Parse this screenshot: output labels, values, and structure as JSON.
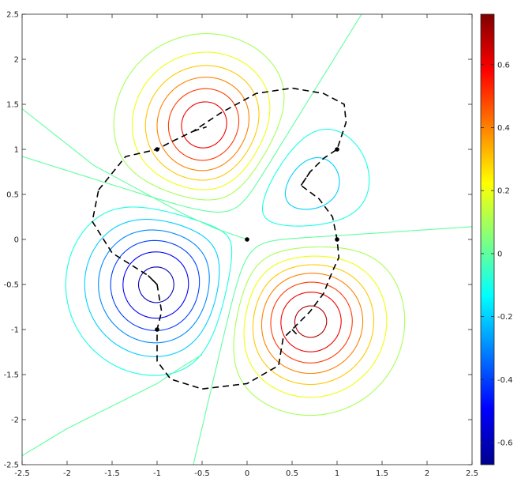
{
  "chart_data": {
    "type": "contour",
    "title": "",
    "xlabel": "",
    "ylabel": "",
    "xlim": [
      -2.5,
      2.5
    ],
    "ylim": [
      -2.5,
      2.5
    ],
    "x_ticks": [
      "-2.5",
      "-2",
      "-1.5",
      "-1",
      "-0.5",
      "0",
      "0.5",
      "1",
      "1.5",
      "2",
      "2.5"
    ],
    "y_ticks": [
      "2.5",
      "2",
      "1.5",
      "1",
      "0.5",
      "0",
      "-0.5",
      "-1",
      "-1.5",
      "-2",
      "-2.5"
    ],
    "colorbar": {
      "colormap": "jet",
      "range": [
        -0.67,
        0.76
      ],
      "ticks": [
        "0.6",
        "0.4",
        "0.2",
        "0",
        "-0.2",
        "-0.4",
        "-0.6"
      ]
    },
    "contour_levels": [
      -0.6,
      -0.5,
      -0.4,
      -0.3,
      -0.2,
      -0.1,
      0.0,
      0.1,
      0.2,
      0.3,
      0.4,
      0.5,
      0.6,
      0.7
    ],
    "extrema": [
      {
        "x": -0.45,
        "y": 1.25,
        "value": 0.7
      },
      {
        "x": 0.6,
        "y": 0.6,
        "value": -0.3
      },
      {
        "x": -1.0,
        "y": -0.5,
        "value": -0.65
      },
      {
        "x": 0.7,
        "y": -0.9,
        "value": 0.75
      }
    ],
    "closed_path": {
      "style": "dashed",
      "points": [
        [
          -1.65,
          0.55
        ],
        [
          -1.35,
          0.92
        ],
        [
          -1.0,
          1.0
        ],
        [
          -0.85,
          1.08
        ],
        [
          -0.6,
          1.2
        ],
        [
          -0.3,
          1.4
        ],
        [
          0.1,
          1.62
        ],
        [
          0.5,
          1.68
        ],
        [
          0.85,
          1.62
        ],
        [
          1.08,
          1.5
        ],
        [
          1.1,
          1.3
        ],
        [
          1.0,
          1.0
        ],
        [
          0.85,
          0.9
        ],
        [
          0.7,
          0.75
        ],
        [
          0.6,
          0.6
        ],
        [
          0.8,
          0.45
        ],
        [
          0.95,
          0.25
        ],
        [
          1.0,
          0.0
        ],
        [
          1.02,
          -0.2
        ],
        [
          0.95,
          -0.35
        ],
        [
          0.85,
          -0.6
        ],
        [
          0.7,
          -0.8
        ],
        [
          0.5,
          -1.0
        ],
        [
          0.4,
          -1.1
        ],
        [
          0.35,
          -1.4
        ],
        [
          0.0,
          -1.6
        ],
        [
          -0.5,
          -1.66
        ],
        [
          -0.85,
          -1.55
        ],
        [
          -1.0,
          -1.35
        ],
        [
          -1.0,
          -1.0
        ],
        [
          -0.95,
          -0.8
        ],
        [
          -1.0,
          -0.5
        ],
        [
          -1.1,
          -0.4
        ],
        [
          -1.5,
          -0.15
        ],
        [
          -1.72,
          0.2
        ],
        [
          -1.65,
          0.55
        ]
      ]
    },
    "inner_segments": [
      {
        "style": "dashed",
        "points": [
          [
            -0.6,
            1.2
          ],
          [
            -0.45,
            1.25
          ]
        ]
      },
      {
        "style": "dashed",
        "points": [
          [
            0.6,
            0.6
          ],
          [
            0.7,
            0.75
          ]
        ]
      },
      {
        "style": "dashed",
        "points": [
          [
            -1.0,
            -0.5
          ],
          [
            -1.1,
            -0.4
          ]
        ]
      },
      {
        "style": "dashed",
        "points": [
          [
            0.5,
            -1.0
          ],
          [
            0.55,
            -1.05
          ]
        ]
      }
    ],
    "zero_lines": [
      {
        "points": [
          [
            -2.5,
            1.45
          ],
          [
            -1.7,
            0.82
          ],
          [
            -1.2,
            0.55
          ],
          [
            -0.7,
            0.28
          ],
          [
            -0.35,
            0.12
          ],
          [
            0.0,
            0.0
          ]
        ]
      },
      {
        "points": [
          [
            -2.5,
            -2.4
          ],
          [
            -2.0,
            -2.1
          ],
          [
            -1.5,
            -1.85
          ],
          [
            -1.0,
            -1.6
          ],
          [
            -0.7,
            -1.4
          ],
          [
            -0.5,
            -1.28
          ]
        ]
      }
    ],
    "markers": [
      {
        "x": -1.0,
        "y": 1.0
      },
      {
        "x": 1.0,
        "y": 1.0
      },
      {
        "x": 0.0,
        "y": 0.0
      },
      {
        "x": 1.0,
        "y": 0.0
      },
      {
        "x": -1.0,
        "y": -1.0
      }
    ],
    "grid": false,
    "legend": "none"
  }
}
